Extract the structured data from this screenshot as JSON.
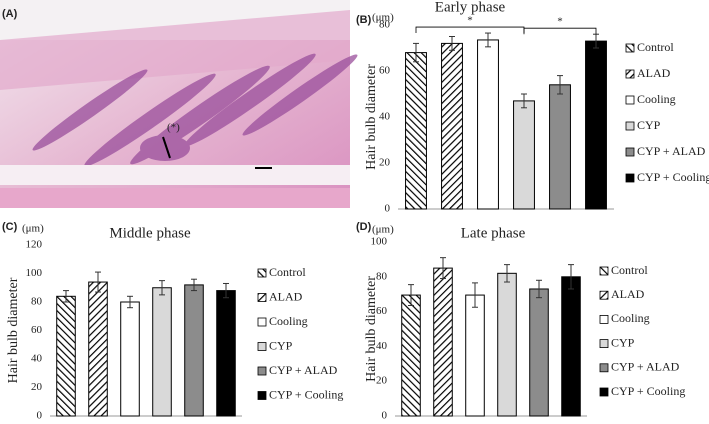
{
  "image_panel": {
    "label": "(A)",
    "annotation": "(*)"
  },
  "chart_data": [
    {
      "type": "bar",
      "panel": "(B)",
      "title": "Early phase",
      "y_unit": "(μm)",
      "y_label": "Hair bulb diameter",
      "categories": [
        "Control",
        "ALAD",
        "Cooling",
        "CYP",
        "CYP + ALAD",
        "CYP + Cooling"
      ],
      "values": [
        68,
        72,
        73.5,
        47,
        54,
        73
      ],
      "errors": [
        4,
        3,
        3,
        3,
        4,
        3
      ],
      "colors": [
        "#ffffff",
        "#ffffff",
        "#ffffff",
        "#d9d9d9",
        "#8c8c8c",
        "#000000"
      ],
      "hatch": [
        "back",
        "forward",
        "none",
        "none",
        "none",
        "none"
      ],
      "ylim": [
        0,
        80
      ],
      "yticks": [
        0,
        20,
        40,
        60,
        80
      ],
      "grid": false,
      "annotations": [
        {
          "text": "*",
          "from": 0,
          "to": 3
        },
        {
          "text": "*",
          "from": 3,
          "to": 5
        }
      ]
    },
    {
      "type": "bar",
      "panel": "(C)",
      "title": "Middle phase",
      "y_unit": "(μm)",
      "y_label": "Hair bulb diameter",
      "categories": [
        "Control",
        "ALAD",
        "Cooling",
        "CYP",
        "CYP + ALAD",
        "CYP + Cooling"
      ],
      "values": [
        84,
        94,
        80,
        90,
        92,
        88
      ],
      "errors": [
        4,
        7,
        4,
        5,
        4,
        5
      ],
      "colors": [
        "#ffffff",
        "#ffffff",
        "#ffffff",
        "#d9d9d9",
        "#8c8c8c",
        "#000000"
      ],
      "hatch": [
        "back",
        "forward",
        "none",
        "none",
        "none",
        "none"
      ],
      "ylim": [
        0,
        120
      ],
      "yticks": [
        0,
        20,
        40,
        60,
        80,
        100,
        120
      ],
      "grid": false
    },
    {
      "type": "bar",
      "panel": "(D)",
      "title": "Late phase",
      "y_unit": "(μm)",
      "y_label": "Hair bulb diameter",
      "categories": [
        "Control",
        "ALAD",
        "Cooling",
        "CYP",
        "CYP + ALAD",
        "CYP + Cooling"
      ],
      "values": [
        69.5,
        85,
        69.5,
        82,
        73,
        80
      ],
      "errors": [
        6,
        6,
        7,
        5,
        5,
        7
      ],
      "colors": [
        "#ffffff",
        "#ffffff",
        "#ffffff",
        "#d9d9d9",
        "#8c8c8c",
        "#000000"
      ],
      "hatch": [
        "back",
        "forward",
        "none",
        "none",
        "none",
        "none"
      ],
      "ylim": [
        0,
        100
      ],
      "yticks": [
        0,
        20,
        40,
        60,
        80,
        100
      ],
      "grid": false
    }
  ]
}
